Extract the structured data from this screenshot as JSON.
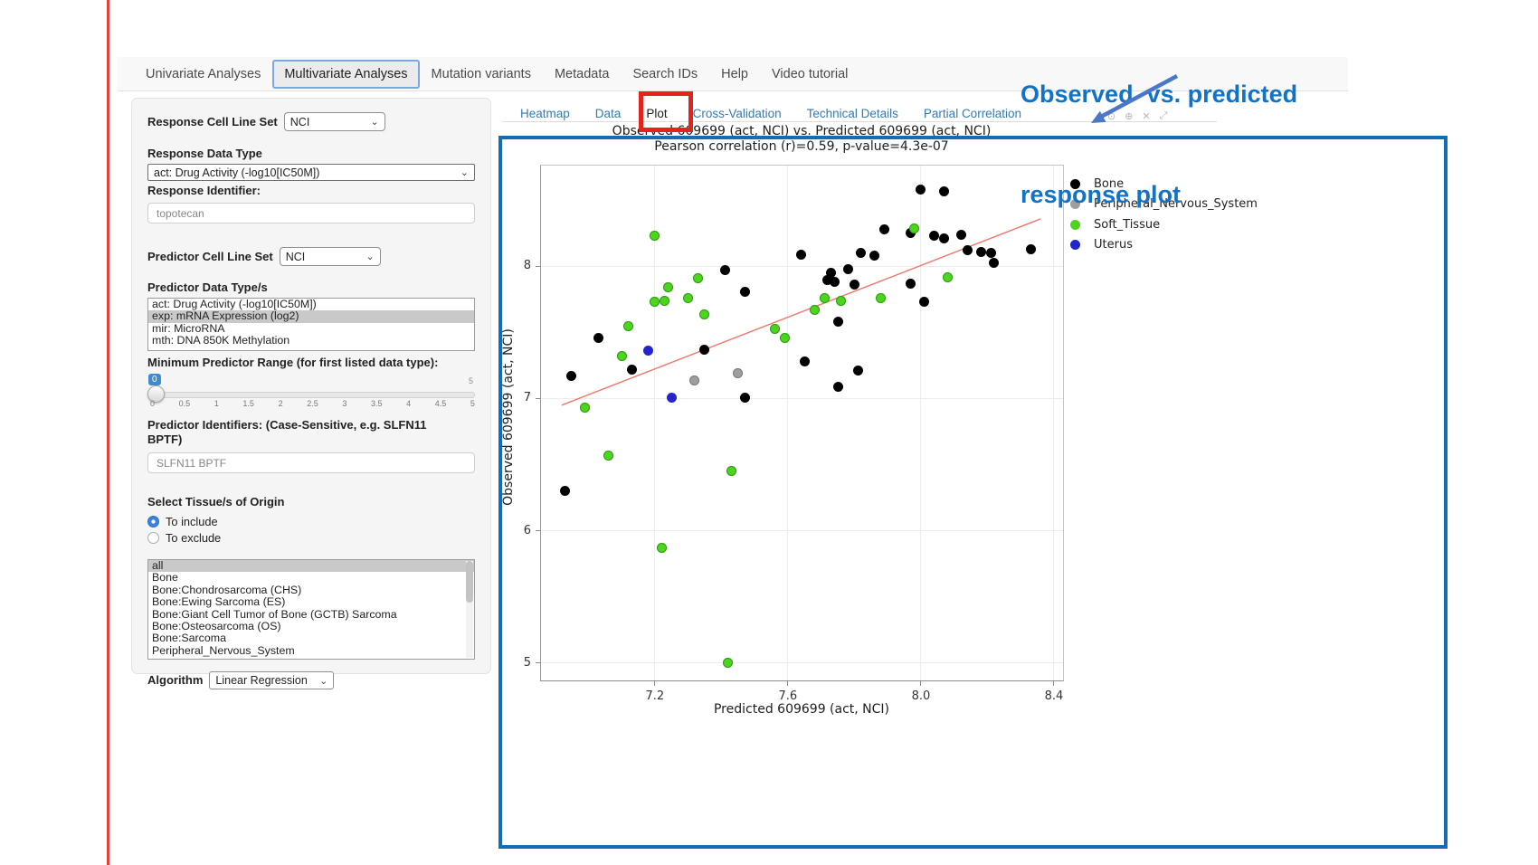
{
  "navbar": {
    "items": [
      {
        "label": "Univariate Analyses",
        "active": false
      },
      {
        "label": "Multivariate Analyses",
        "active": true
      },
      {
        "label": "Mutation variants",
        "active": false
      },
      {
        "label": "Metadata",
        "active": false
      },
      {
        "label": "Search IDs",
        "active": false
      },
      {
        "label": "Help",
        "active": false
      },
      {
        "label": "Video tutorial",
        "active": false
      }
    ]
  },
  "sidebar": {
    "response_cell_line_set": {
      "label": "Response Cell Line Set",
      "value": "NCI"
    },
    "response_data_type": {
      "label": "Response Data Type",
      "value": "act: Drug Activity (-log10[IC50M])"
    },
    "response_identifier": {
      "label": "Response Identifier:",
      "value": "topotecan"
    },
    "predictor_cell_line_set": {
      "label": "Predictor Cell Line Set",
      "value": "NCI"
    },
    "predictor_data_types": {
      "label": "Predictor Data Type/s",
      "options": [
        "act: Drug Activity (-log10[IC50M])",
        "exp: mRNA Expression (log2)",
        "mir: MicroRNA",
        "mth: DNA 850K Methylation"
      ],
      "selected_index": 1
    },
    "min_predictor_range": {
      "label": "Minimum Predictor Range (for first listed data type):",
      "value": "0",
      "max_label": "5",
      "ticks": [
        "0",
        "0.5",
        "1",
        "1.5",
        "2",
        "2.5",
        "3",
        "3.5",
        "4",
        "4.5",
        "5"
      ]
    },
    "predictor_identifiers": {
      "label": "Predictor Identifiers: (Case-Sensitive, e.g. SLFN11 BPTF)",
      "value": "SLFN11 BPTF"
    },
    "tissue_origin": {
      "label": "Select Tissue/s of Origin",
      "radios": [
        {
          "label": "To include",
          "selected": true
        },
        {
          "label": "To exclude",
          "selected": false
        }
      ],
      "options": [
        "all",
        "Bone",
        "Bone:Chondrosarcoma (CHS)",
        "Bone:Ewing Sarcoma (ES)",
        "Bone:Giant Cell Tumor of Bone (GCTB) Sarcoma",
        "Bone:Osteosarcoma (OS)",
        "Bone:Sarcoma",
        "Peripheral_Nervous_System"
      ],
      "selected_index": 0
    },
    "algorithm": {
      "label": "Algorithm",
      "value": "Linear Regression"
    }
  },
  "subtabs": {
    "items": [
      {
        "label": "Heatmap",
        "active": false
      },
      {
        "label": "Data",
        "active": false
      },
      {
        "label": "Plot",
        "active": true
      },
      {
        "label": "Cross-Validation",
        "active": false
      },
      {
        "label": "Technical Details",
        "active": false
      },
      {
        "label": "Partial Correlation",
        "active": false
      }
    ]
  },
  "annotation": {
    "line1": "Observed  vs. predicted",
    "line2": "response plot",
    "text_color": "#1273c6",
    "arrow_color": "#4a77c9",
    "plot_box_color": "#166cb4",
    "tab_highlight_color": "#e3231d"
  },
  "modebar": {
    "icons": [
      "camera-icon",
      "zoomin-icon",
      "close-icon",
      "expand-icon"
    ]
  },
  "chart_data": {
    "type": "scatter",
    "title": "Observed 609699 (act, NCI) vs. Predicted 609699 (act, NCI)",
    "subtitle": "Pearson correlation (r)=0.59, p-value=4.3e-07",
    "xlabel": "Predicted 609699 (act, NCI)",
    "ylabel": "Observed 609699 (act, NCI)",
    "xlim": [
      6.855,
      8.43
    ],
    "ylim": [
      4.86,
      8.77
    ],
    "xticks": [
      "7.2",
      "7.6",
      "8.0",
      "8.4"
    ],
    "yticks": [
      "5",
      "6",
      "7",
      "8"
    ],
    "grid": true,
    "legend_position": "right-top-outside",
    "regression_line": {
      "x": [
        6.92,
        8.36
      ],
      "y": [
        6.95,
        8.36
      ],
      "color": "#f2766b"
    },
    "series": [
      {
        "name": "Bone",
        "color": "#000000",
        "stroke": null,
        "points": [
          [
            8.0,
            8.58
          ],
          [
            8.07,
            8.57
          ],
          [
            7.89,
            8.28
          ],
          [
            7.97,
            8.25
          ],
          [
            8.04,
            8.23
          ],
          [
            8.07,
            8.21
          ],
          [
            8.12,
            8.24
          ],
          [
            8.14,
            8.12
          ],
          [
            8.18,
            8.11
          ],
          [
            8.33,
            8.13
          ],
          [
            7.64,
            8.09
          ],
          [
            7.82,
            8.1
          ],
          [
            7.86,
            8.08
          ],
          [
            8.21,
            8.1
          ],
          [
            8.22,
            8.03
          ],
          [
            7.41,
            7.97
          ],
          [
            7.78,
            7.98
          ],
          [
            7.73,
            7.95
          ],
          [
            7.72,
            7.9
          ],
          [
            7.74,
            7.88
          ],
          [
            7.8,
            7.86
          ],
          [
            7.97,
            7.87
          ],
          [
            7.47,
            7.81
          ],
          [
            8.01,
            7.73
          ],
          [
            7.75,
            7.58
          ],
          [
            7.03,
            7.46
          ],
          [
            7.35,
            7.37
          ],
          [
            7.65,
            7.28
          ],
          [
            7.13,
            7.22
          ],
          [
            6.95,
            7.17
          ],
          [
            7.81,
            7.21
          ],
          [
            7.75,
            7.09
          ],
          [
            7.47,
            7.01
          ],
          [
            6.93,
            6.3
          ]
        ]
      },
      {
        "name": "Peripheral_Nervous_System",
        "color": "#9e9e9e",
        "stroke": "#7d7d7d",
        "points": [
          [
            7.32,
            7.14
          ],
          [
            7.45,
            7.19
          ]
        ]
      },
      {
        "name": "Soft_Tissue",
        "color": "#4cd41f",
        "stroke": "#2f9e12",
        "points": [
          [
            7.2,
            8.23
          ],
          [
            7.98,
            8.29
          ],
          [
            7.33,
            7.91
          ],
          [
            7.24,
            7.84
          ],
          [
            7.3,
            7.76
          ],
          [
            7.2,
            7.73
          ],
          [
            7.23,
            7.74
          ],
          [
            8.08,
            7.92
          ],
          [
            7.35,
            7.64
          ],
          [
            7.71,
            7.76
          ],
          [
            7.76,
            7.74
          ],
          [
            7.88,
            7.76
          ],
          [
            7.68,
            7.67
          ],
          [
            7.12,
            7.55
          ],
          [
            7.56,
            7.53
          ],
          [
            7.59,
            7.46
          ],
          [
            7.1,
            7.32
          ],
          [
            6.99,
            6.93
          ],
          [
            7.06,
            6.57
          ],
          [
            7.43,
            6.45
          ],
          [
            7.22,
            5.87
          ],
          [
            7.42,
            5.0
          ]
        ]
      },
      {
        "name": "Uterus",
        "color": "#2323cf",
        "stroke": null,
        "points": [
          [
            7.18,
            7.36
          ],
          [
            7.25,
            7.01
          ]
        ]
      }
    ]
  }
}
